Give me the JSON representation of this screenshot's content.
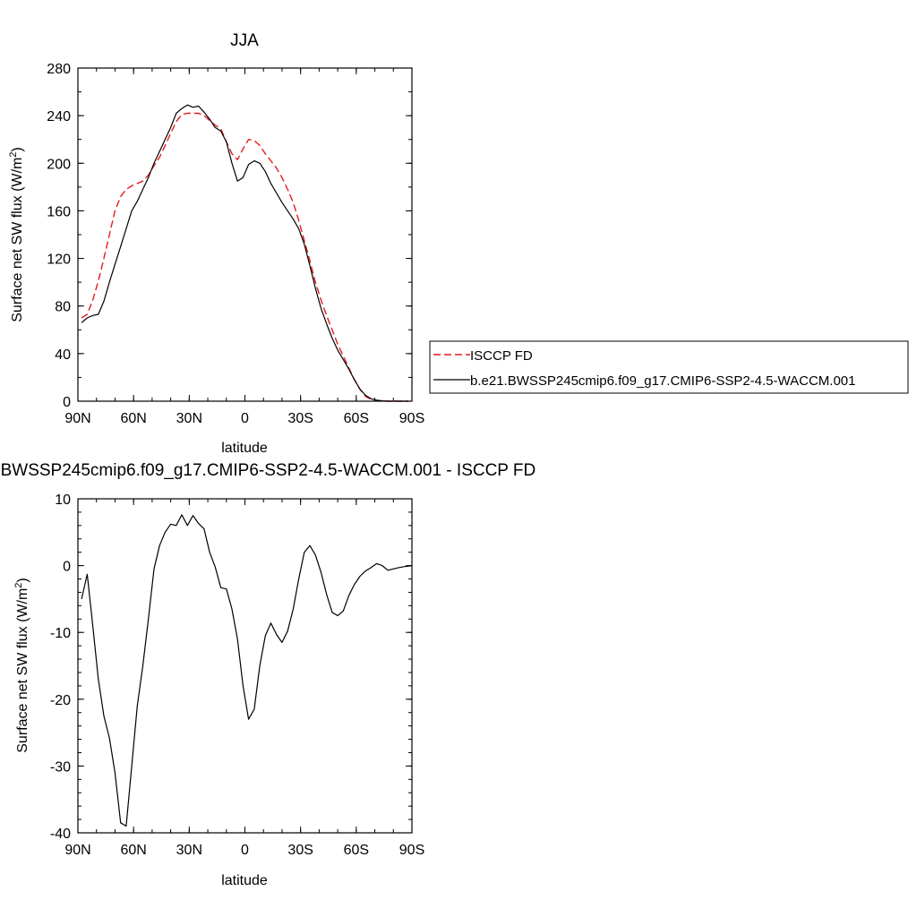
{
  "chart_data": [
    {
      "type": "line",
      "title": "JJA",
      "xlabel": "latitude",
      "ylabel": "Surface net SW flux (W/m",
      "ylabel_sup": "2",
      "ylabel_close": ")",
      "x_tick_labels": [
        "90N",
        "60N",
        "30N",
        "0",
        "30S",
        "60S",
        "90S"
      ],
      "x_tick_values": [
        90,
        60,
        30,
        0,
        -30,
        -60,
        -90
      ],
      "xlim": [
        90,
        -90
      ],
      "ylim": [
        0,
        280
      ],
      "y_ticks": [
        0,
        40,
        80,
        120,
        160,
        200,
        240,
        280
      ],
      "legend_position": "right",
      "series": [
        {
          "name": "ISCCP FD",
          "color": "#e31a1c",
          "dash": "dashed",
          "points": [
            [
              88,
              70
            ],
            [
              85,
              73
            ],
            [
              82,
              85
            ],
            [
              79,
              101
            ],
            [
              76,
              120
            ],
            [
              73,
              140
            ],
            [
              70,
              160
            ],
            [
              67,
              172
            ],
            [
              64,
              178
            ],
            [
              61,
              181
            ],
            [
              58,
              183
            ],
            [
              55,
              185
            ],
            [
              52,
              190
            ],
            [
              49,
              198
            ],
            [
              46,
              205
            ],
            [
              43,
              215
            ],
            [
              40,
              225
            ],
            [
              37,
              235
            ],
            [
              34,
              241
            ],
            [
              31,
              242
            ],
            [
              28,
              242
            ],
            [
              25,
              242
            ],
            [
              22,
              240
            ],
            [
              19,
              236
            ],
            [
              16,
              232
            ],
            [
              13,
              229
            ],
            [
              10,
              218
            ],
            [
              7,
              208
            ],
            [
              4,
              203
            ],
            [
              1,
              212
            ],
            [
              -2,
              220
            ],
            [
              -5,
              219
            ],
            [
              -8,
              215
            ],
            [
              -11,
              208
            ],
            [
              -14,
              202
            ],
            [
              -17,
              196
            ],
            [
              -20,
              188
            ],
            [
              -23,
              178
            ],
            [
              -26,
              167
            ],
            [
              -29,
              152
            ],
            [
              -32,
              135
            ],
            [
              -35,
              118
            ],
            [
              -38,
              100
            ],
            [
              -41,
              85
            ],
            [
              -44,
              72
            ],
            [
              -47,
              60
            ],
            [
              -50,
              48
            ],
            [
              -53,
              38
            ],
            [
              -56,
              28
            ],
            [
              -59,
              18
            ],
            [
              -62,
              10
            ],
            [
              -65,
              4
            ],
            [
              -68,
              1.5
            ],
            [
              -71,
              0.5
            ],
            [
              -74,
              0.2
            ],
            [
              -77,
              0
            ],
            [
              -80,
              0
            ],
            [
              -83,
              0
            ],
            [
              -86,
              0
            ],
            [
              -88,
              0
            ]
          ]
        },
        {
          "name": "b.e21.BWSSP245cmip6.f09_g17.CMIP6-SSP2-4.5-WACCM.001",
          "color": "#000000",
          "dash": "solid",
          "points": [
            [
              88,
              66
            ],
            [
              85,
              70
            ],
            [
              82,
              72
            ],
            [
              79,
              73
            ],
            [
              76,
              84
            ],
            [
              73,
              100
            ],
            [
              70,
              115
            ],
            [
              67,
              130
            ],
            [
              64,
              145
            ],
            [
              61,
              160
            ],
            [
              58,
              168
            ],
            [
              55,
              178
            ],
            [
              52,
              188
            ],
            [
              49,
              200
            ],
            [
              46,
              210
            ],
            [
              43,
              220
            ],
            [
              40,
              230
            ],
            [
              37,
              242
            ],
            [
              34,
              246
            ],
            [
              31,
              249
            ],
            [
              28,
              247
            ],
            [
              25,
              248
            ],
            [
              22,
              243
            ],
            [
              19,
              237
            ],
            [
              16,
              230
            ],
            [
              13,
              227
            ],
            [
              10,
              218
            ],
            [
              7,
              200
            ],
            [
              4,
              185
            ],
            [
              1,
              188
            ],
            [
              -2,
              199
            ],
            [
              -5,
              202
            ],
            [
              -8,
              200
            ],
            [
              -11,
              193
            ],
            [
              -14,
              183
            ],
            [
              -17,
              175
            ],
            [
              -20,
              167
            ],
            [
              -23,
              160
            ],
            [
              -26,
              153
            ],
            [
              -29,
              145
            ],
            [
              -32,
              132
            ],
            [
              -35,
              114
            ],
            [
              -38,
              95
            ],
            [
              -41,
              78
            ],
            [
              -44,
              65
            ],
            [
              -47,
              53
            ],
            [
              -50,
              43
            ],
            [
              -53,
              35
            ],
            [
              -56,
              27
            ],
            [
              -59,
              18
            ],
            [
              -62,
              10
            ],
            [
              -65,
              5
            ],
            [
              -68,
              2
            ],
            [
              -71,
              0.8
            ],
            [
              -74,
              0.3
            ],
            [
              -77,
              0
            ],
            [
              -80,
              0
            ],
            [
              -83,
              0
            ],
            [
              -86,
              0
            ],
            [
              -88,
              0
            ]
          ]
        }
      ]
    },
    {
      "type": "line",
      "title": "b.e21.BWSSP245cmip6.f09_g17.CMIP6-SSP2-4.5-WACCM.001 - ISCCP FD",
      "xlabel": "latitude",
      "ylabel": "Surface net SW flux (W/m",
      "ylabel_sup": "2",
      "ylabel_close": ")",
      "x_tick_labels": [
        "90N",
        "60N",
        "30N",
        "0",
        "30S",
        "60S",
        "90S"
      ],
      "x_tick_values": [
        90,
        60,
        30,
        0,
        -30,
        -60,
        -90
      ],
      "xlim": [
        90,
        -90
      ],
      "ylim": [
        -40,
        10
      ],
      "y_ticks": [
        -40,
        -30,
        -20,
        -10,
        0,
        10
      ],
      "series": [
        {
          "color": "#000000",
          "dash": "solid",
          "points": [
            [
              88,
              -5
            ],
            [
              85,
              -1.3
            ],
            [
              82,
              -9
            ],
            [
              79,
              -17
            ],
            [
              76,
              -22.5
            ],
            [
              73,
              -25.8
            ],
            [
              70,
              -31
            ],
            [
              67,
              -38.5
            ],
            [
              64,
              -39
            ],
            [
              61,
              -30
            ],
            [
              58,
              -21
            ],
            [
              55,
              -15
            ],
            [
              52,
              -8
            ],
            [
              49,
              -0.5
            ],
            [
              46,
              3
            ],
            [
              43,
              5
            ],
            [
              40,
              6.2
            ],
            [
              37,
              6
            ],
            [
              34,
              7.6
            ],
            [
              31,
              6
            ],
            [
              28,
              7.5
            ],
            [
              25,
              6.3
            ],
            [
              22,
              5.5
            ],
            [
              19,
              2
            ],
            [
              16,
              -0.2
            ],
            [
              13,
              -3.3
            ],
            [
              10,
              -3.5
            ],
            [
              7,
              -6.5
            ],
            [
              4,
              -11
            ],
            [
              1,
              -18
            ],
            [
              -2,
              -23
            ],
            [
              -5,
              -21.5
            ],
            [
              -8,
              -15
            ],
            [
              -11,
              -10.5
            ],
            [
              -14,
              -8.6
            ],
            [
              -17,
              -10.3
            ],
            [
              -20,
              -11.5
            ],
            [
              -23,
              -9.8
            ],
            [
              -26,
              -6.5
            ],
            [
              -29,
              -2
            ],
            [
              -32,
              2
            ],
            [
              -35,
              3
            ],
            [
              -38,
              1.6
            ],
            [
              -41,
              -1
            ],
            [
              -44,
              -4.3
            ],
            [
              -47,
              -7
            ],
            [
              -50,
              -7.5
            ],
            [
              -53,
              -6.8
            ],
            [
              -56,
              -4.5
            ],
            [
              -59,
              -2.8
            ],
            [
              -62,
              -1.6
            ],
            [
              -65,
              -0.8
            ],
            [
              -68,
              -0.3
            ],
            [
              -71,
              0.3
            ],
            [
              -74,
              0
            ],
            [
              -77,
              -0.7
            ],
            [
              -80,
              -0.5
            ],
            [
              -83,
              -0.3
            ],
            [
              -86,
              -0.15
            ],
            [
              -90,
              0
            ]
          ]
        }
      ]
    }
  ]
}
